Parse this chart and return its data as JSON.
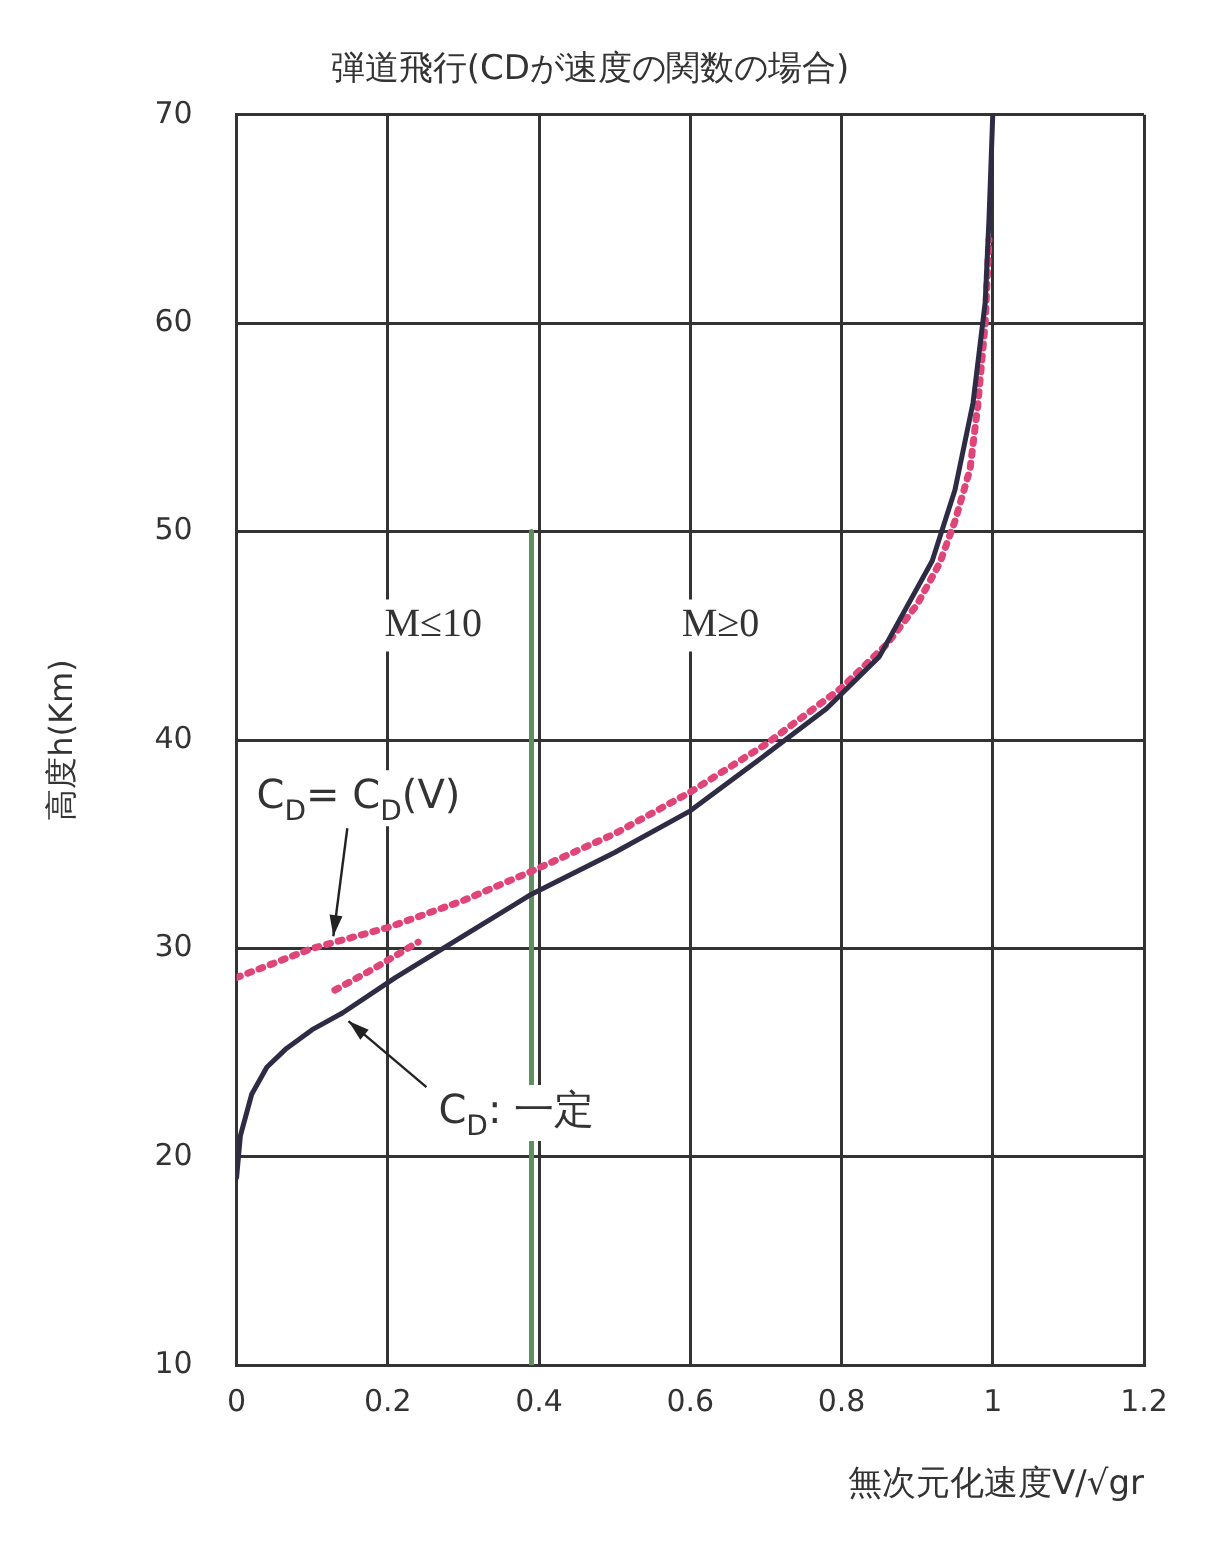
{
  "chart_data": {
    "type": "line",
    "title": "弾道飛行(CDが速度の関数の場合)",
    "xlabel": "無次元化速度V/√gr",
    "ylabel": "高度h(Km)",
    "xlim": [
      0,
      1.2
    ],
    "xticks": [
      0,
      0.2,
      0.4,
      0.6,
      0.8,
      1,
      1.2
    ],
    "ylim": [
      10,
      70
    ],
    "yticks": [
      10,
      20,
      30,
      40,
      50,
      60,
      70
    ],
    "grid": true,
    "legend": false,
    "marker": "none",
    "series": [
      {
        "color": "#2e2c45",
        "line_style": "solid",
        "x": [
          0,
          0.005,
          0.02,
          0.04,
          0.066,
          0.1,
          0.14,
          0.21,
          0.3,
          0.39,
          0.5,
          0.6,
          0.7,
          0.78,
          0.85,
          0.92,
          0.95,
          0.974,
          0.99,
          0.995,
          1.0
        ],
        "values": [
          19,
          21,
          23,
          24.3,
          25.2,
          26.1,
          26.9,
          28.6,
          30.6,
          32.6,
          34.6,
          36.6,
          39.3,
          41.5,
          44,
          48.6,
          52,
          56.2,
          61,
          65,
          70
        ]
      },
      {
        "color": "#e0457a",
        "line_style": "dotted",
        "x": [
          0,
          0.05,
          0.1,
          0.2,
          0.3,
          0.39,
          0.5,
          0.6,
          0.7,
          0.8,
          0.86,
          0.9,
          0.93,
          0.95,
          0.97,
          0.98,
          0.99,
          0.995
        ],
        "values": [
          28.6,
          29.3,
          30,
          31,
          32.3,
          33.7,
          35.5,
          37.5,
          39.8,
          42.5,
          44.6,
          46.5,
          48.5,
          50.5,
          53,
          56,
          60,
          64
        ]
      },
      {
        "color": "#e0457a",
        "line_style": "dotted",
        "x": [
          0.13,
          0.18,
          0.24
        ],
        "values": [
          28,
          29,
          30.3
        ]
      },
      {
        "color": "#5f8f5f",
        "line_style": "solid",
        "x": [
          0.39,
          0.39
        ],
        "values": [
          10,
          50
        ]
      }
    ],
    "annotations": [
      "M≤10",
      "M≥0",
      {
        "text": "C$_{D}$= C$_{D}$(V)",
        "x": 0.12,
        "y": 30.2
      },
      {
        "text": "C$_{D}$: 一定",
        "x": 0.14,
        "y": 26.8
      }
    ]
  }
}
